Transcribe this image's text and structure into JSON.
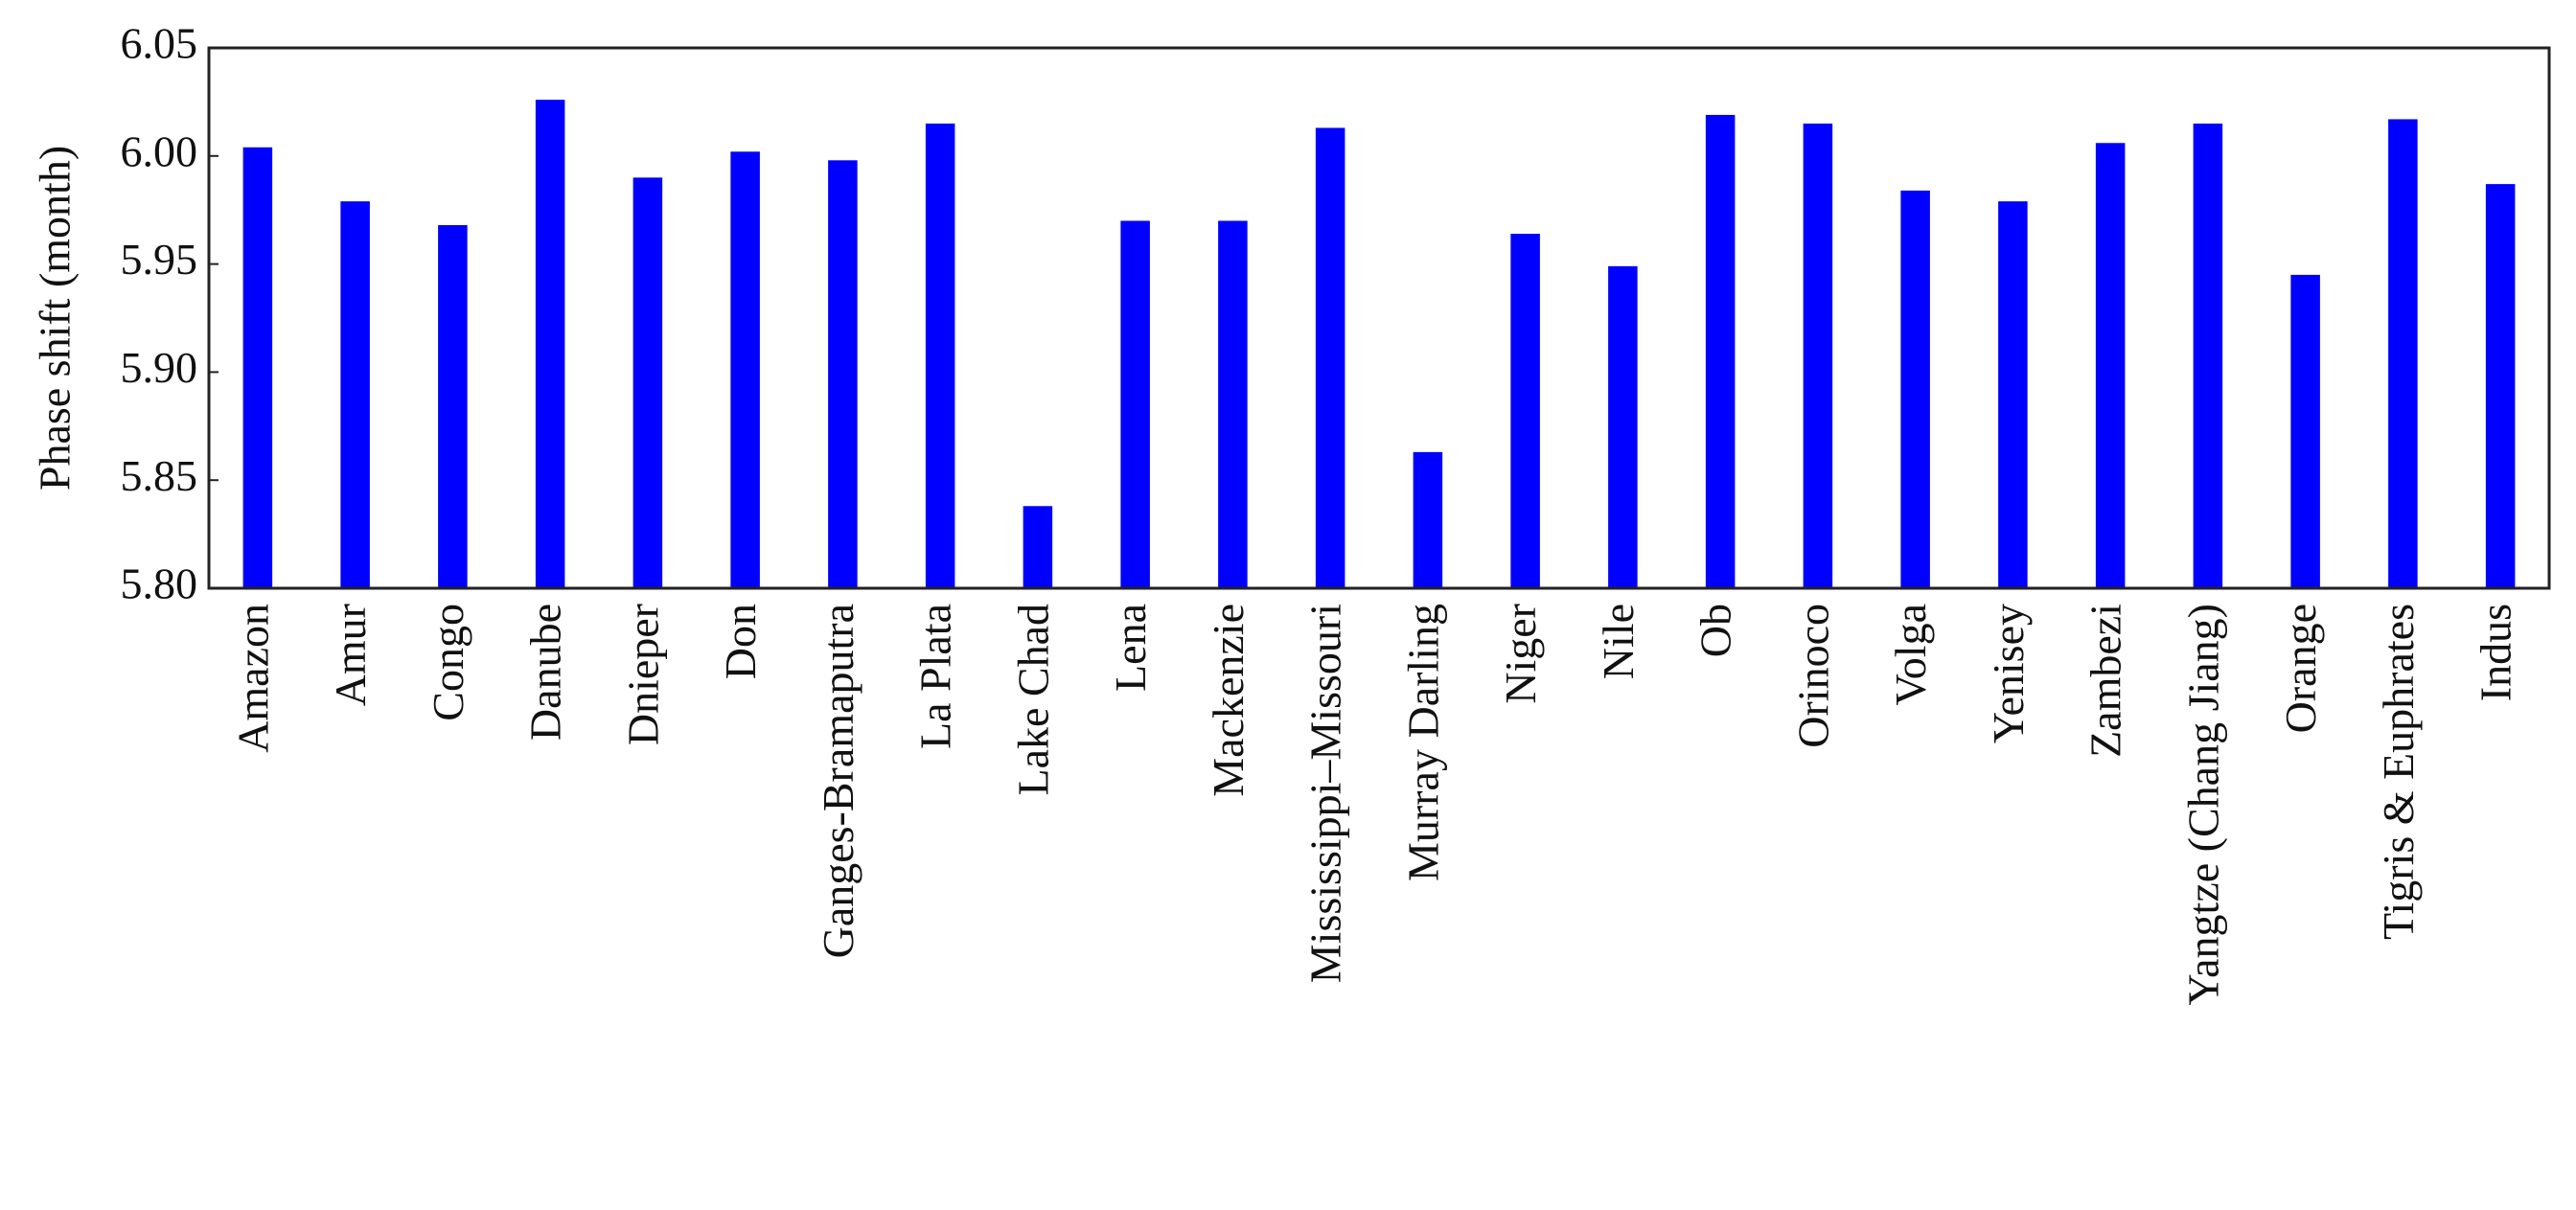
{
  "chart_data": {
    "type": "bar",
    "ylabel": "Phase shift (month)",
    "categories": [
      "Amazon",
      "Amur",
      "Congo",
      "Danube",
      "Dnieper",
      "Don",
      "Ganges-Bramaputra",
      "La Plata",
      "Lake Chad",
      "Lena",
      "Mackenzie",
      "Mississippi–Missouri",
      "Murray Darling",
      "Niger",
      "Nile",
      "Ob",
      "Orinoco",
      "Volga",
      "Yenisey",
      "Zambezi",
      "Yangtze (Chang Jiang)",
      "Orange",
      "Tigris & Euphrates",
      "Indus"
    ],
    "values": [
      6.004,
      5.979,
      5.968,
      6.026,
      5.99,
      6.002,
      5.998,
      6.015,
      5.838,
      5.97,
      5.97,
      6.013,
      5.863,
      5.964,
      5.949,
      6.019,
      6.015,
      5.984,
      5.979,
      6.006,
      6.015,
      5.945,
      6.017,
      5.987
    ],
    "color": "#0000ff",
    "ylim": [
      5.8,
      6.05
    ],
    "yticks": [
      {
        "value": 5.8,
        "label": "5.80"
      },
      5.85,
      {
        "value": 5.9,
        "label": "5.90"
      },
      5.95,
      {
        "value": 6.0,
        "label": "6.00"
      },
      6.05
    ],
    "grid": false
  }
}
